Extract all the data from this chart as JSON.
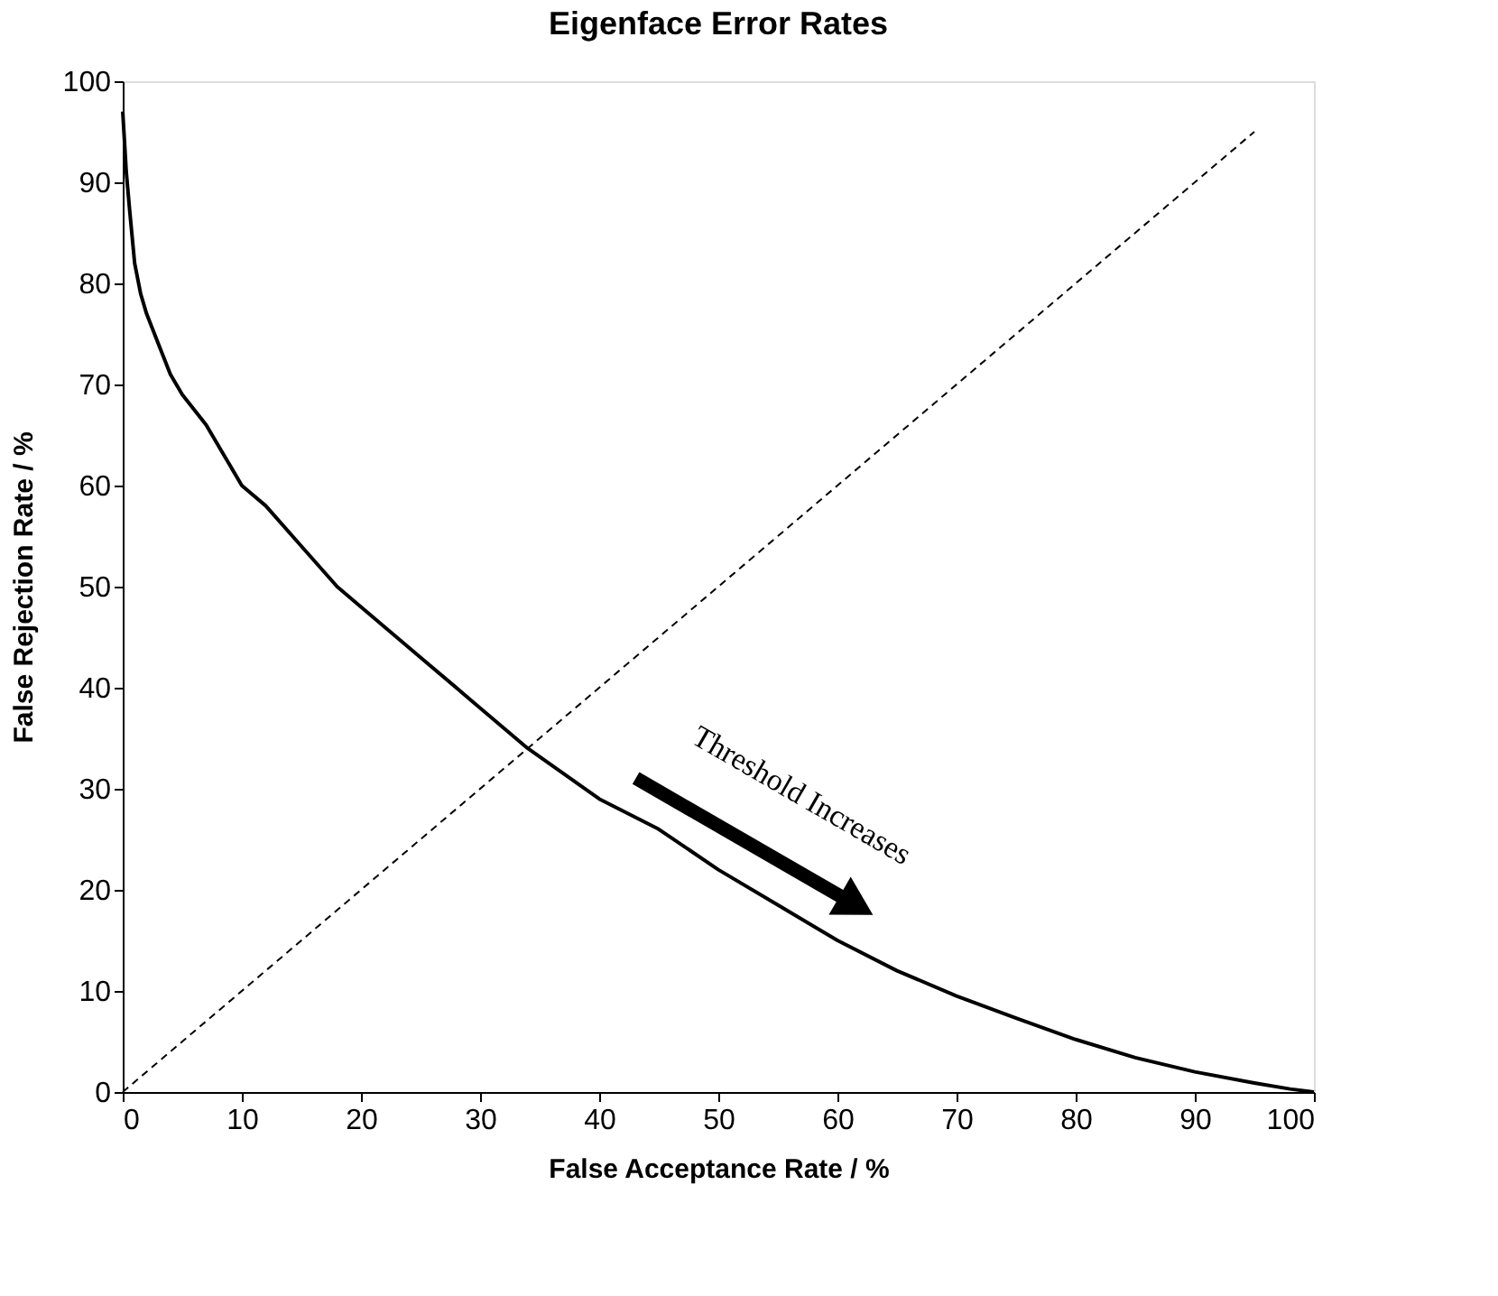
{
  "chart_data": {
    "type": "line",
    "title": "Eigenface Error Rates",
    "xlabel": "False Acceptance Rate / %",
    "ylabel": "False Rejection Rate / %",
    "series": [
      {
        "x": [
          0,
          0.3,
          0.6,
          1,
          1.5,
          2,
          3,
          4,
          5,
          7,
          9,
          10,
          12,
          15,
          18,
          20,
          25,
          30,
          34,
          40,
          45,
          50,
          55,
          60,
          65,
          70,
          75,
          80,
          85,
          90,
          95,
          98,
          100
        ],
        "values": [
          97,
          91,
          87,
          82,
          79,
          77,
          74,
          71,
          69,
          66,
          62,
          60,
          58,
          54,
          50,
          48,
          43,
          38,
          34,
          29,
          26,
          22,
          18.5,
          15,
          12,
          9.5,
          7.3,
          5.2,
          3.4,
          2,
          0.9,
          0.3,
          0
        ],
        "color": "#000000",
        "line_style": "solid"
      },
      {
        "type": "line",
        "x": [
          0,
          95
        ],
        "values": [
          0,
          95
        ],
        "color": "#000000",
        "line_style": "dashed"
      }
    ],
    "annotations": [
      "Threshold Increases"
    ],
    "xlim": [
      0,
      100
    ],
    "ylim": [
      0,
      100
    ],
    "xticks": [
      0,
      10,
      20,
      30,
      40,
      50,
      60,
      70,
      80,
      90,
      100
    ],
    "yticks": [
      0,
      10,
      20,
      30,
      40,
      50,
      60,
      70,
      80,
      90,
      100
    ],
    "grid": false,
    "marker": "none"
  }
}
